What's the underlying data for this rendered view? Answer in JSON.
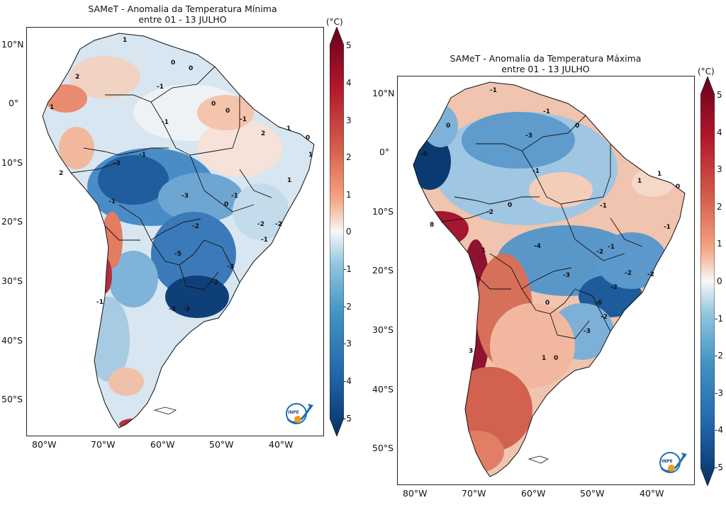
{
  "maps": [
    {
      "title_line1": "SAMeT - Anomalia da Temperatura Mínima",
      "title_line2": "entre 01 - 13 JULHO",
      "lat_ticks": [
        "10°N",
        "0°",
        "10°S",
        "20°S",
        "30°S",
        "40°S",
        "50°S"
      ],
      "lon_ticks": [
        "80°W",
        "70°W",
        "60°W",
        "50°W",
        "40°W"
      ],
      "unit": "(°C)",
      "colorbar_ticks": [
        "5",
        "4",
        "3",
        "2",
        "1",
        "0",
        "-1",
        "-2",
        "-3",
        "-4",
        "-5"
      ],
      "contour_labels": [
        "1",
        "0",
        "0",
        "-1",
        "2",
        "-1",
        "0",
        "1",
        "0",
        "-1",
        "2",
        "1",
        "0",
        "1",
        "2",
        "-1",
        "-3",
        "1",
        "-3",
        "-1",
        "-1",
        "-2",
        "-5",
        "-1",
        "-3",
        "-2",
        "-3",
        "-3",
        "-2",
        "0",
        "-2",
        "-1"
      ],
      "logo_text": "INPE"
    },
    {
      "title_line1": "SAMeT - Anomalia da Temperatura Máxima",
      "title_line2": "entre 01 - 13 JULHO",
      "lat_ticks": [
        "10°N",
        "0°",
        "10°S",
        "20°S",
        "30°S",
        "40°S",
        "50°S"
      ],
      "lon_ticks": [
        "80°W",
        "70°W",
        "60°W",
        "50°W",
        "40°W"
      ],
      "unit": "(°C)",
      "colorbar_ticks": [
        "5",
        "4",
        "3",
        "2",
        "1",
        "0",
        "-1",
        "-2",
        "-3",
        "-4",
        "-5"
      ],
      "contour_labels": [
        "-1",
        "-8",
        "0",
        "-3",
        "-1",
        "0",
        "-1",
        "1",
        "0",
        "-2",
        "0",
        "8",
        "1",
        "-4",
        "-2",
        "-1",
        "-3",
        "-2",
        "-2",
        "0",
        "-6",
        "-2",
        "-3",
        "3",
        "1",
        "0",
        "-1",
        "-2",
        "-1",
        "1"
      ],
      "logo_text": "INPE"
    }
  ],
  "colors": {
    "neg5": "#08306b",
    "neg3": "#2166ac",
    "neg1": "#92c5de",
    "zero": "#f7f7f7",
    "pos1": "#f4a582",
    "pos3": "#d6604d",
    "pos5": "#67001f"
  }
}
